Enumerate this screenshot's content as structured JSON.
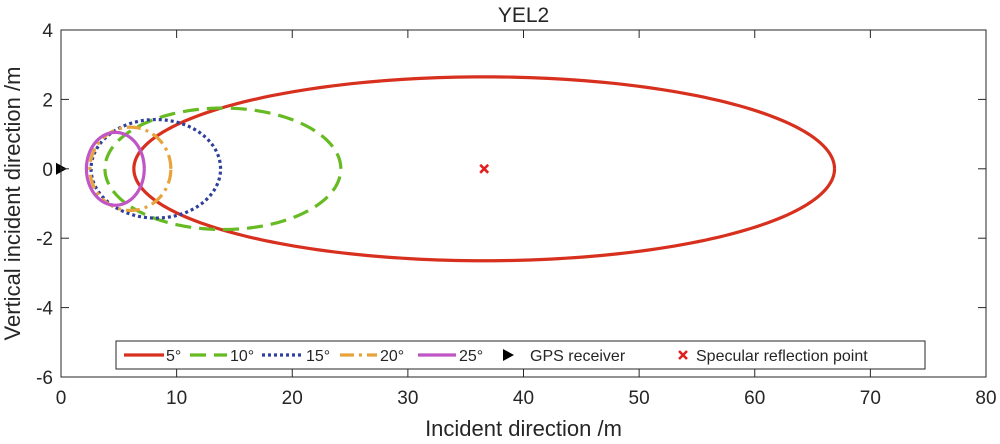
{
  "chart_data": {
    "type": "line",
    "title": "YEL2",
    "xlabel": "Incident direction /m",
    "ylabel": "Vertical incident direction /m",
    "xlim": [
      0,
      80
    ],
    "ylim": [
      -6,
      4
    ],
    "xticks": [
      0,
      10,
      20,
      30,
      40,
      50,
      60,
      70,
      80
    ],
    "yticks": [
      -6,
      -4,
      -2,
      0,
      2,
      4
    ],
    "grid": false,
    "legend_position": "bottom",
    "series": [
      {
        "name": "5°",
        "shape": "ellipse",
        "center_x": 36.6,
        "center_y": 0,
        "semi_major": 30.3,
        "semi_minor": 2.65,
        "color": "#d7301f",
        "style": "solid"
      },
      {
        "name": "10°",
        "shape": "ellipse",
        "center_x": 14.0,
        "center_y": 0,
        "semi_major": 10.2,
        "semi_minor": 1.75,
        "color": "#66bb22",
        "style": "dashed"
      },
      {
        "name": "15°",
        "shape": "ellipse",
        "center_x": 8.2,
        "center_y": 0,
        "semi_major": 5.6,
        "semi_minor": 1.42,
        "color": "#2e3f9c",
        "style": "dotted"
      },
      {
        "name": "20°",
        "shape": "ellipse",
        "center_x": 6.0,
        "center_y": 0,
        "semi_major": 3.5,
        "semi_minor": 1.2,
        "color": "#e8a33d",
        "style": "dashdot"
      },
      {
        "name": "25°",
        "shape": "ellipse",
        "center_x": 4.7,
        "center_y": 0,
        "semi_major": 2.5,
        "semi_minor": 1.05,
        "color": "#c055c5",
        "style": "solid"
      }
    ],
    "markers": [
      {
        "name": "GPS receiver",
        "x": 0,
        "y": 0,
        "symbol": "triangle-right",
        "color": "#000000"
      },
      {
        "name": "Specular reflection point",
        "x": 36.6,
        "y": 0,
        "symbol": "x",
        "color": "#e02020"
      }
    ]
  }
}
